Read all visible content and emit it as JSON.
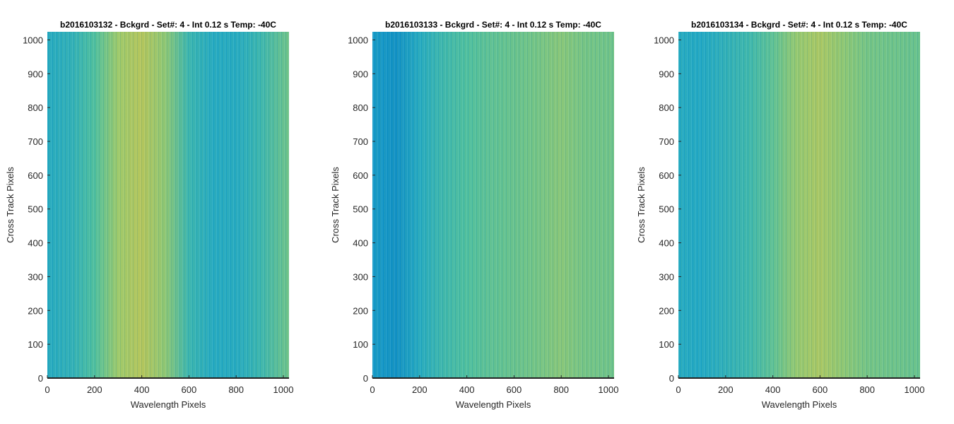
{
  "chart_data": [
    {
      "type": "heatmap",
      "title": "b2016103132 - Bckgrd - Set#: 4 - Int 0.12 s Temp: -40C",
      "xlabel": "Wavelength Pixels",
      "ylabel": "Cross Track Pixels",
      "xlim": [
        0,
        1024
      ],
      "ylim": [
        0,
        1024
      ],
      "xticks": [
        0,
        200,
        400,
        600,
        800,
        1000
      ],
      "yticks": [
        0,
        100,
        200,
        300,
        400,
        500,
        600,
        700,
        800,
        900,
        1000
      ],
      "column_profile": {
        "x": [
          0,
          100,
          200,
          300,
          400,
          500,
          600,
          700,
          800,
          900,
          1024
        ],
        "level": [
          0.3,
          0.35,
          0.5,
          0.75,
          0.85,
          0.7,
          0.4,
          0.3,
          0.3,
          0.4,
          0.6
        ]
      }
    },
    {
      "type": "heatmap",
      "title": "b2016103133 - Bckgrd - Set#: 4 - Int 0.12 s Temp: -40C",
      "xlabel": "Wavelength Pixels",
      "ylabel": "Cross Track Pixels",
      "xlim": [
        0,
        1024
      ],
      "ylim": [
        0,
        1024
      ],
      "xticks": [
        0,
        200,
        400,
        600,
        800,
        1000
      ],
      "yticks": [
        0,
        100,
        200,
        300,
        400,
        500,
        600,
        700,
        800,
        900,
        1000
      ],
      "column_profile": {
        "x": [
          0,
          100,
          200,
          300,
          400,
          500,
          600,
          700,
          800,
          900,
          1024
        ],
        "level": [
          0.2,
          0.15,
          0.3,
          0.42,
          0.5,
          0.55,
          0.58,
          0.62,
          0.68,
          0.62,
          0.6
        ]
      }
    },
    {
      "type": "heatmap",
      "title": "b2016103134 - Bckgrd - Set#: 4 - Int 0.12 s Temp: -40C",
      "xlabel": "Wavelength Pixels",
      "ylabel": "Cross Track Pixels",
      "xlim": [
        0,
        1024
      ],
      "ylim": [
        0,
        1024
      ],
      "xticks": [
        0,
        200,
        400,
        600,
        800,
        1000
      ],
      "yticks": [
        0,
        100,
        200,
        300,
        400,
        500,
        600,
        700,
        800,
        900,
        1000
      ],
      "column_profile": {
        "x": [
          0,
          100,
          200,
          300,
          400,
          500,
          600,
          700,
          800,
          900,
          1024
        ],
        "level": [
          0.3,
          0.28,
          0.35,
          0.42,
          0.55,
          0.72,
          0.8,
          0.7,
          0.62,
          0.6,
          0.58
        ]
      }
    }
  ],
  "colormap": [
    "#0072bd",
    "#1aa5c9",
    "#4dbf9e",
    "#9cc96a",
    "#d6bf45"
  ]
}
